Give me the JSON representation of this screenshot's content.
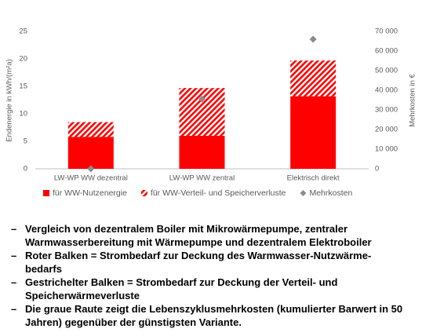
{
  "chart_data": {
    "type": "bar",
    "stacked": true,
    "y_label": "Endenergie in kWh/(m²a)",
    "y2_label": "Mehrkosten in €",
    "categories": [
      "LW-WP WW dezentral",
      "LW-WP WW zentral",
      "Elektrisch direkt"
    ],
    "series": [
      {
        "name": "für WW-Nutzenergie",
        "color": "#ff0000",
        "values": [
          5.8,
          6.0,
          13.2
        ]
      },
      {
        "name": "für WW-Verteil- und Speicherverluste",
        "color": "#ff0000",
        "hatch": true,
        "values": [
          2.7,
          8.7,
          6.5
        ]
      },
      {
        "name": "Mehrkosten",
        "color": "#8c8c8c",
        "axis": "y2",
        "marker": "diamond",
        "values": [
          0,
          35500,
          66000
        ]
      }
    ],
    "ylim": [
      0,
      25
    ],
    "yticks": [
      0,
      5,
      10,
      15,
      20,
      25
    ],
    "y2lim": [
      0,
      70000
    ],
    "y2ticks": [
      0,
      {
        "value": 10000,
        "label": "10 000"
      },
      {
        "value": 20000,
        "label": "20 000"
      },
      {
        "value": 30000,
        "label": "30 000"
      },
      {
        "value": 40000,
        "label": "40 000"
      },
      {
        "value": 50000,
        "label": "50 000"
      },
      {
        "value": 60000,
        "label": "60 000"
      },
      {
        "value": 70000,
        "label": "70 000"
      }
    ],
    "grid": false,
    "legend": "bottom"
  },
  "notes": {
    "marker": "–",
    "items": [
      "Vergleich von dezentralem Boiler mit Mikrowärmepumpe, zentraler Warmwasserbereitung mit Wärmepumpe und dezentralem Elektroboiler",
      "Roter Balken = Strombedarf zur Deckung des Warmwasser-Nutzwärme-bedarfs",
      "Gestrichelter Balken = Strombedarf zur Deckung der Verteil- und Speicherwärmeverluste",
      "Die graue Raute zeigt die Lebenszyklusmehrkosten (kumulierter Barwert in 50 Jahren) gegenüber der günstigsten Variante."
    ]
  }
}
